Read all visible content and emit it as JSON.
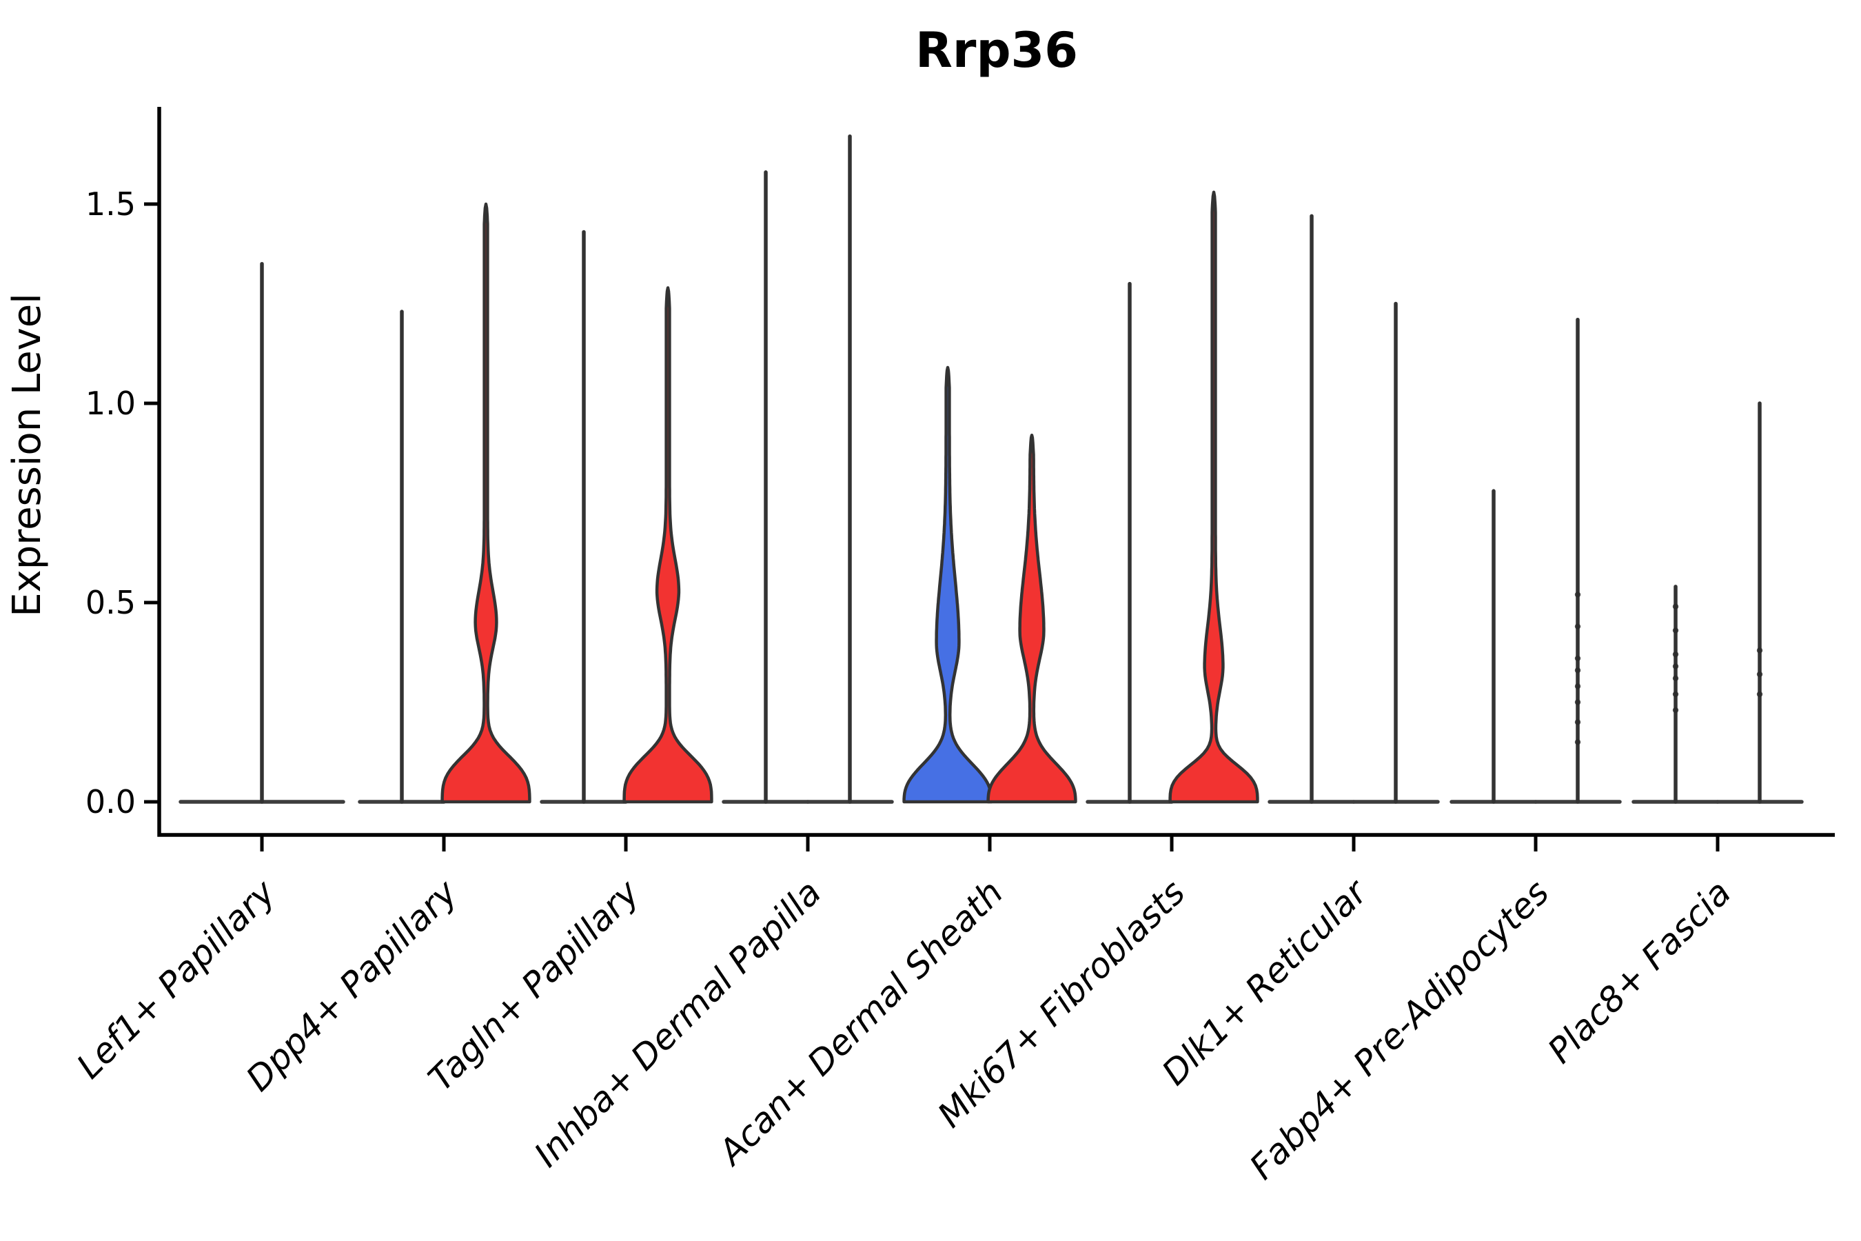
{
  "title": "Rrp36",
  "axes": {
    "ylabel": "Expression Level",
    "ytick_labels": [
      "0.0",
      "0.5",
      "1.0",
      "1.5"
    ]
  },
  "colors": {
    "red": "#F23331",
    "blue": "#4670E4",
    "outline": "#333333",
    "zero_line": "#3d3d3d",
    "axis": "#000000",
    "dot": "#2b2b2b"
  },
  "chart_data": {
    "type": "violin",
    "title": "Rrp36",
    "xlabel": "",
    "ylabel": "Expression Level",
    "ylim": [
      -0.08,
      1.74
    ],
    "yticks": [
      0,
      0.5,
      1,
      1.5
    ],
    "grid": false,
    "legend_position": "none",
    "categories": [
      "Lef1+ Papillary",
      "Dpp4+ Papillary",
      "Tagln+ Papillary",
      "Inhba+ Dermal Papilla",
      "Acan+ Dermal Sheath",
      "Mki67+ Fibroblasts",
      "Dlk1+ Reticular",
      "Fabp4+ Pre-Adipocytes",
      "Plac8+ Fascia"
    ],
    "groups": [
      {
        "category": "Lef1+ Papillary",
        "violins": [
          {
            "pos": "single",
            "shape": "spike",
            "fill": null,
            "max": 1.35,
            "dots": []
          }
        ]
      },
      {
        "category": "Dpp4+ Papillary",
        "violins": [
          {
            "pos": "left",
            "shape": "spike",
            "fill": null,
            "max": 1.23,
            "dots": []
          },
          {
            "pos": "right",
            "shape": "density",
            "fill": "red",
            "max": 1.5,
            "bulge_center": 0.45,
            "bulge_half": 13,
            "sigma_lo": 0.09,
            "sigma_hi": 0.11,
            "base_sigma": 0.13,
            "base_pow": 3.2,
            "dots": []
          }
        ]
      },
      {
        "category": "Tagln+ Papillary",
        "violins": [
          {
            "pos": "left",
            "shape": "spike",
            "fill": null,
            "max": 1.43,
            "dots": []
          },
          {
            "pos": "right",
            "shape": "density",
            "fill": "red",
            "max": 1.29,
            "bulge_center": 0.53,
            "bulge_half": 13.5,
            "sigma_lo": 0.1,
            "sigma_hi": 0.11,
            "base_sigma": 0.13,
            "base_pow": 3.2,
            "dots": []
          }
        ]
      },
      {
        "category": "Inhba+ Dermal Papilla",
        "violins": [
          {
            "pos": "left",
            "shape": "spike",
            "fill": null,
            "max": 1.58,
            "dots": []
          },
          {
            "pos": "right",
            "shape": "spike",
            "fill": null,
            "max": 1.67,
            "dots": []
          }
        ]
      },
      {
        "category": "Acan+ Dermal Sheath",
        "violins": [
          {
            "pos": "left",
            "shape": "density",
            "fill": "blue",
            "max": 1.09,
            "bulge_center": 0.4,
            "bulge_half": 14,
            "sigma_lo": 0.1,
            "sigma_hi": 0.22,
            "base_sigma": 0.115,
            "base_pow": 2.6,
            "dots": []
          },
          {
            "pos": "right",
            "shape": "density",
            "fill": "red",
            "max": 0.92,
            "bulge_center": 0.43,
            "bulge_half": 15,
            "sigma_lo": 0.1,
            "sigma_hi": 0.2,
            "base_sigma": 0.115,
            "base_pow": 2.6,
            "dots": []
          }
        ]
      },
      {
        "category": "Mki67+ Fibroblasts",
        "violins": [
          {
            "pos": "left",
            "shape": "spike",
            "fill": null,
            "max": 1.3,
            "dots": []
          },
          {
            "pos": "right",
            "shape": "density",
            "fill": "red",
            "max": 1.53,
            "bulge_center": 0.34,
            "bulge_half": 11,
            "sigma_lo": 0.085,
            "sigma_hi": 0.14,
            "base_sigma": 0.105,
            "base_pow": 3.2,
            "dots": []
          }
        ]
      },
      {
        "category": "Dlk1+ Reticular",
        "violins": [
          {
            "pos": "left",
            "shape": "spike",
            "fill": null,
            "max": 1.47,
            "dots": []
          },
          {
            "pos": "right",
            "shape": "spike",
            "fill": null,
            "max": 1.25,
            "dots": []
          }
        ]
      },
      {
        "category": "Fabp4+ Pre-Adipocytes",
        "violins": [
          {
            "pos": "left",
            "shape": "spike",
            "fill": null,
            "max": 0.78,
            "dots": []
          },
          {
            "pos": "right",
            "shape": "spike",
            "fill": null,
            "max": 1.21,
            "dots": [
              0.15,
              0.2,
              0.25,
              0.29,
              0.33,
              0.36,
              0.44,
              0.52
            ]
          }
        ]
      },
      {
        "category": "Plac8+ Fascia",
        "violins": [
          {
            "pos": "left",
            "shape": "spike",
            "fill": null,
            "max": 0.54,
            "dots": [
              0.23,
              0.27,
              0.31,
              0.34,
              0.37,
              0.43,
              0.49
            ]
          },
          {
            "pos": "right",
            "shape": "spike",
            "fill": null,
            "max": 1.0,
            "dots": [
              0.27,
              0.32,
              0.38
            ]
          }
        ]
      }
    ]
  }
}
